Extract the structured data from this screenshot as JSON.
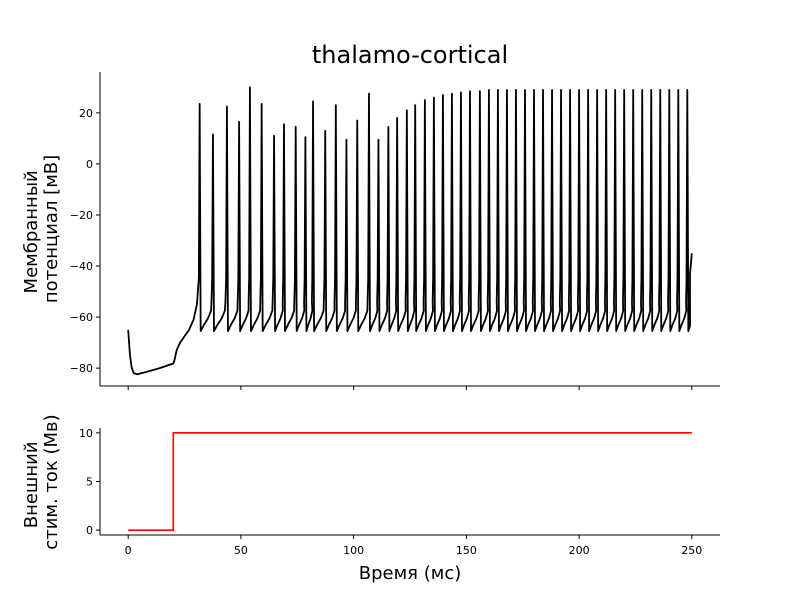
{
  "chart_data": [
    {
      "type": "line",
      "title": "thalamo-cortical",
      "xlabel": "",
      "ylabel": "Мембранный\nпотенциал [мВ]",
      "xlim": [
        -12.5,
        262.5
      ],
      "ylim": [
        -87,
        36
      ],
      "yticks": [
        -80,
        -60,
        -40,
        -20,
        0,
        20
      ],
      "xticks": [
        0,
        50,
        100,
        150,
        200,
        250
      ],
      "show_xtick_labels": false,
      "grid": false,
      "color": "#000000",
      "series": [
        {
          "rest_segment": [
            [
              0,
              -65
            ],
            [
              0.8,
              -75
            ],
            [
              1.6,
              -80
            ],
            [
              2.5,
              -82
            ],
            [
              4,
              -82.4
            ],
            [
              8,
              -81.5
            ],
            [
              14,
              -80
            ],
            [
              20,
              -78.2
            ],
            [
              20.5,
              -77
            ],
            [
              21.5,
              -73
            ],
            [
              23,
              -70
            ],
            [
              25,
              -67.5
            ],
            [
              27,
              -65
            ],
            [
              29,
              -61
            ],
            [
              30.5,
              -55
            ],
            [
              31.3,
              -45
            ]
          ],
          "spike_times": [
            31.7,
            37.6,
            43.8,
            49.2,
            54.0,
            59.2,
            64.7,
            69.1,
            74.3,
            78.6,
            82.0,
            87.4,
            92.1,
            96.8,
            101.6,
            106.8,
            111.0,
            115.4,
            119.3,
            123.6,
            127.3,
            131.6,
            135.6,
            139.6,
            143.6,
            147.6,
            151.6,
            156.0,
            160.0,
            164.0,
            168.0,
            172.0,
            176.0,
            180.0,
            184.0,
            188.0,
            192.0,
            196.0,
            200.0,
            204.0,
            208.0,
            212.0,
            216.0,
            220.0,
            224.0,
            228.0,
            232.0,
            236.0,
            240.0,
            244.0,
            248.0
          ],
          "spike_peaks": [
            23.5,
            11.5,
            22.5,
            16.5,
            30,
            23.5,
            11,
            15.5,
            14.5,
            10.5,
            24.5,
            13,
            23,
            9.5,
            17,
            27.5,
            9.5,
            14.5,
            18,
            21,
            23,
            25,
            26,
            27,
            27.5,
            28,
            28.5,
            28.5,
            29,
            29,
            29,
            29,
            29,
            29,
            29,
            29,
            29,
            29,
            29,
            29,
            29,
            29,
            29,
            29,
            29,
            29,
            29,
            29,
            29,
            29,
            29
          ],
          "reset_v": -65.5,
          "threshold_v": -55,
          "end_point": [
            250,
            -35
          ]
        }
      ]
    },
    {
      "type": "line",
      "title": "",
      "xlabel": "Время (мс)",
      "ylabel": "Внешний\nстим. ток (Мв)",
      "xlim": [
        -12.5,
        262.5
      ],
      "ylim": [
        -0.5,
        10.5
      ],
      "yticks": [
        0,
        5,
        10
      ],
      "xticks": [
        0,
        50,
        100,
        150,
        200,
        250
      ],
      "grid": false,
      "color": "#ff0000",
      "series": [
        {
          "x": [
            0,
            20,
            20,
            250
          ],
          "y": [
            0,
            0,
            10,
            10
          ]
        }
      ]
    }
  ]
}
